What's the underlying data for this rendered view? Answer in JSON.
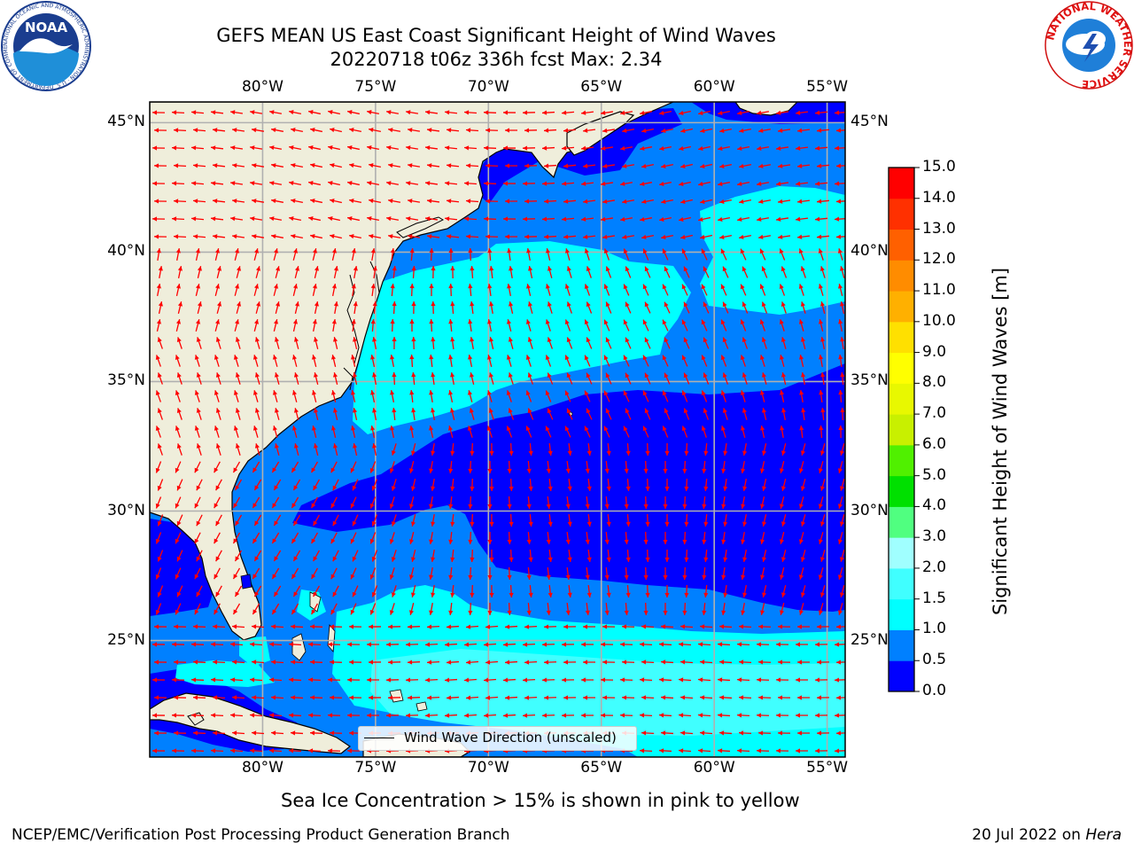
{
  "title": {
    "line1": "GEFS MEAN US East Coast Significant Height of Wind Waves",
    "line2": "20220718 t06z 336h fcst   Max: 2.34"
  },
  "map": {
    "lon_range": [
      -85,
      -54.2
    ],
    "lat_range": [
      20.5,
      45.8
    ],
    "lon_ticks": [
      {
        "value": -80,
        "label": "80°W"
      },
      {
        "value": -75,
        "label": "75°W"
      },
      {
        "value": -70,
        "label": "70°W"
      },
      {
        "value": -65,
        "label": "65°W"
      },
      {
        "value": -60,
        "label": "60°W"
      },
      {
        "value": -55,
        "label": "55°W"
      }
    ],
    "lat_ticks": [
      {
        "value": 45,
        "label": "45°N"
      },
      {
        "value": 40,
        "label": "40°N"
      },
      {
        "value": 35,
        "label": "35°N"
      },
      {
        "value": 30,
        "label": "30°N"
      },
      {
        "value": 25,
        "label": "25°N"
      }
    ],
    "legend_label": "Wind Wave Direction (unscaled)",
    "colors": {
      "land": "#efeedb",
      "coast": "#000000",
      "grid": "#b0b0b0",
      "arrow": "#ff0000"
    }
  },
  "colorbar": {
    "label": "Significant Height of Wind Waves [m]",
    "levels": [
      {
        "value": "0.0",
        "color": "#0000ff"
      },
      {
        "value": "0.5",
        "color": "#0080ff"
      },
      {
        "value": "1.0",
        "color": "#00ffff"
      },
      {
        "value": "1.5",
        "color": "#40ffff"
      },
      {
        "value": "2.0",
        "color": "#a0ffff"
      },
      {
        "value": "3.0",
        "color": "#50ff80"
      },
      {
        "value": "4.0",
        "color": "#00e000"
      },
      {
        "value": "5.0",
        "color": "#50f000"
      },
      {
        "value": "6.0",
        "color": "#c8f000"
      },
      {
        "value": "7.0",
        "color": "#e8f800"
      },
      {
        "value": "8.0",
        "color": "#ffff00"
      },
      {
        "value": "9.0",
        "color": "#ffe000"
      },
      {
        "value": "10.0",
        "color": "#ffb000"
      },
      {
        "value": "11.0",
        "color": "#ff8c00"
      },
      {
        "value": "12.0",
        "color": "#ff6000"
      },
      {
        "value": "13.0",
        "color": "#ff3000"
      },
      {
        "value": "14.0",
        "color": "#ff0000"
      },
      {
        "value": "15.0",
        "color": ""
      }
    ]
  },
  "caption": "Sea Ice Concentration > 15% is shown in pink to yellow",
  "footer": {
    "left": "NCEP/EMC/Verification Post Processing Product Generation Branch",
    "date": "20 Jul 2022 on",
    "machine": "Hera"
  },
  "logos": {
    "noaa_text": "NOAA",
    "noaa_ring": "NATIONAL OCEANIC AND ATMOSPHERIC ADMINISTRATION · U.S. DEPARTMENT OF COMMERCE",
    "nws_ring": "NATIONAL WEATHER SERVICE"
  }
}
